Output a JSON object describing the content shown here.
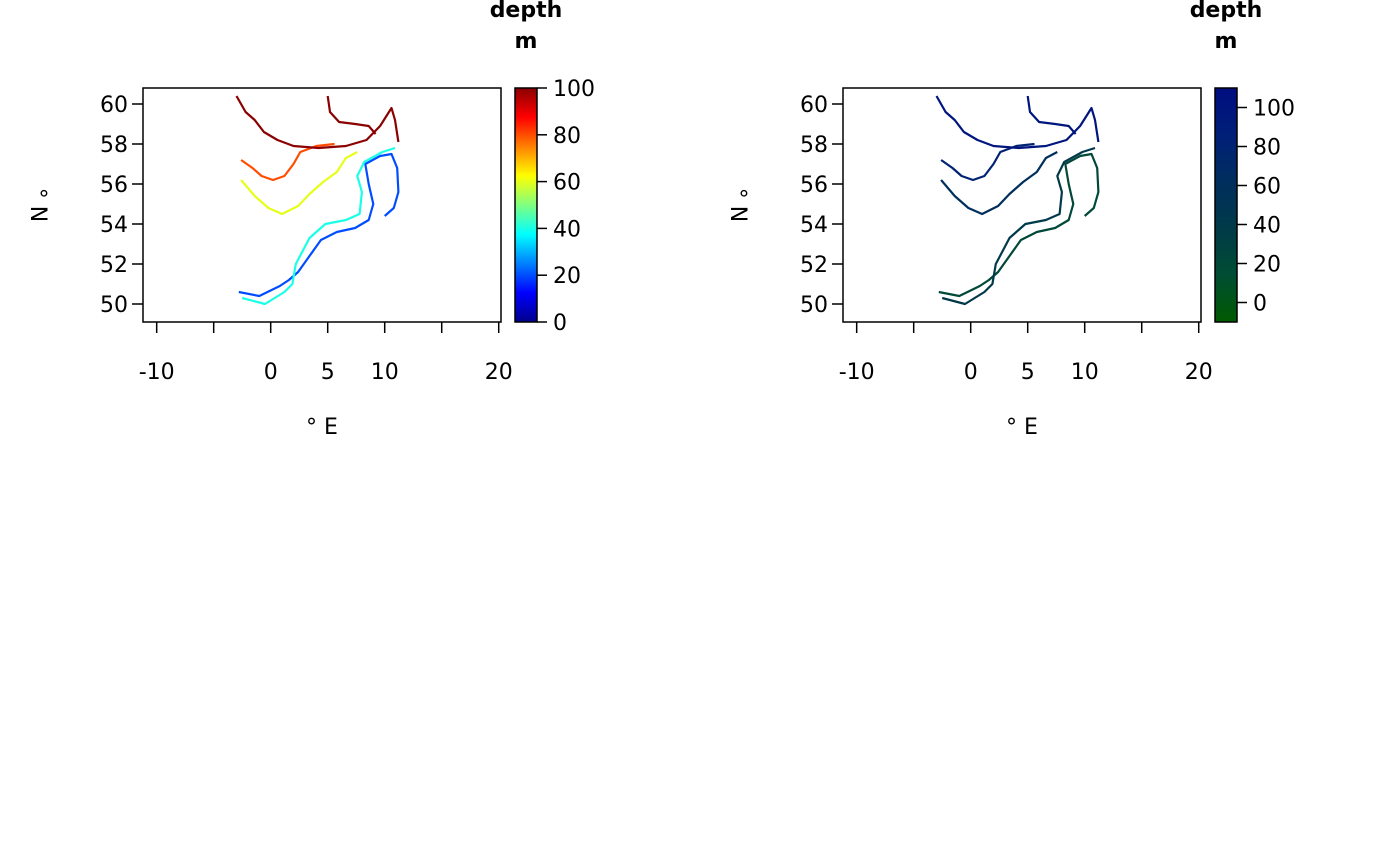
{
  "chart_data": [
    {
      "type": "contour-map",
      "xlabel": "° E",
      "ylabel": "° N",
      "x_ticks": [
        -10,
        -5,
        0,
        5,
        10,
        15,
        20
      ],
      "x_tick_labels": [
        "-10",
        "",
        "0",
        "5",
        "10",
        "",
        "20"
      ],
      "y_ticks": [
        50,
        52,
        54,
        56,
        58,
        60
      ],
      "y_tick_labels": [
        "50",
        "52",
        "54",
        "56",
        "58",
        "60"
      ],
      "xlim": [
        -11.2,
        20.2
      ],
      "ylim": [
        49.1,
        60.8
      ],
      "contour_levels": [
        20,
        40,
        60,
        80,
        100
      ],
      "legend": {
        "title_line1": "depth",
        "title_line2": "m",
        "range": [
          0,
          100
        ],
        "ticks": [
          0,
          20,
          40,
          60,
          80,
          100
        ],
        "tick_labels": [
          "0",
          "20",
          "40",
          "60",
          "80",
          "100"
        ],
        "palette": [
          "#00008b",
          "#0000ff",
          "#0080ff",
          "#00ffff",
          "#80ff80",
          "#ffff00",
          "#ff8000",
          "#ff0000",
          "#8b0000"
        ]
      }
    },
    {
      "type": "contour-map",
      "xlabel": "° E",
      "ylabel": "° N",
      "x_ticks": [
        -10,
        -5,
        0,
        5,
        10,
        15,
        20
      ],
      "x_tick_labels": [
        "-10",
        "",
        "0",
        "5",
        "10",
        "",
        "20"
      ],
      "y_ticks": [
        50,
        52,
        54,
        56,
        58,
        60
      ],
      "y_tick_labels": [
        "50",
        "52",
        "54",
        "56",
        "58",
        "60"
      ],
      "xlim": [
        -11.2,
        20.2
      ],
      "ylim": [
        49.1,
        60.8
      ],
      "contour_levels": [
        20,
        40,
        60,
        80,
        100
      ],
      "legend": {
        "title_line1": "depth",
        "title_line2": "m",
        "range": [
          -10,
          110
        ],
        "ticks": [
          0,
          20,
          40,
          60,
          80,
          100
        ],
        "tick_labels": [
          "0",
          "20",
          "40",
          "60",
          "80",
          "100"
        ],
        "palette": [
          "#005a00",
          "#004d33",
          "#003a48",
          "#002e5e",
          "#001f78",
          "#000d80"
        ]
      }
    }
  ]
}
